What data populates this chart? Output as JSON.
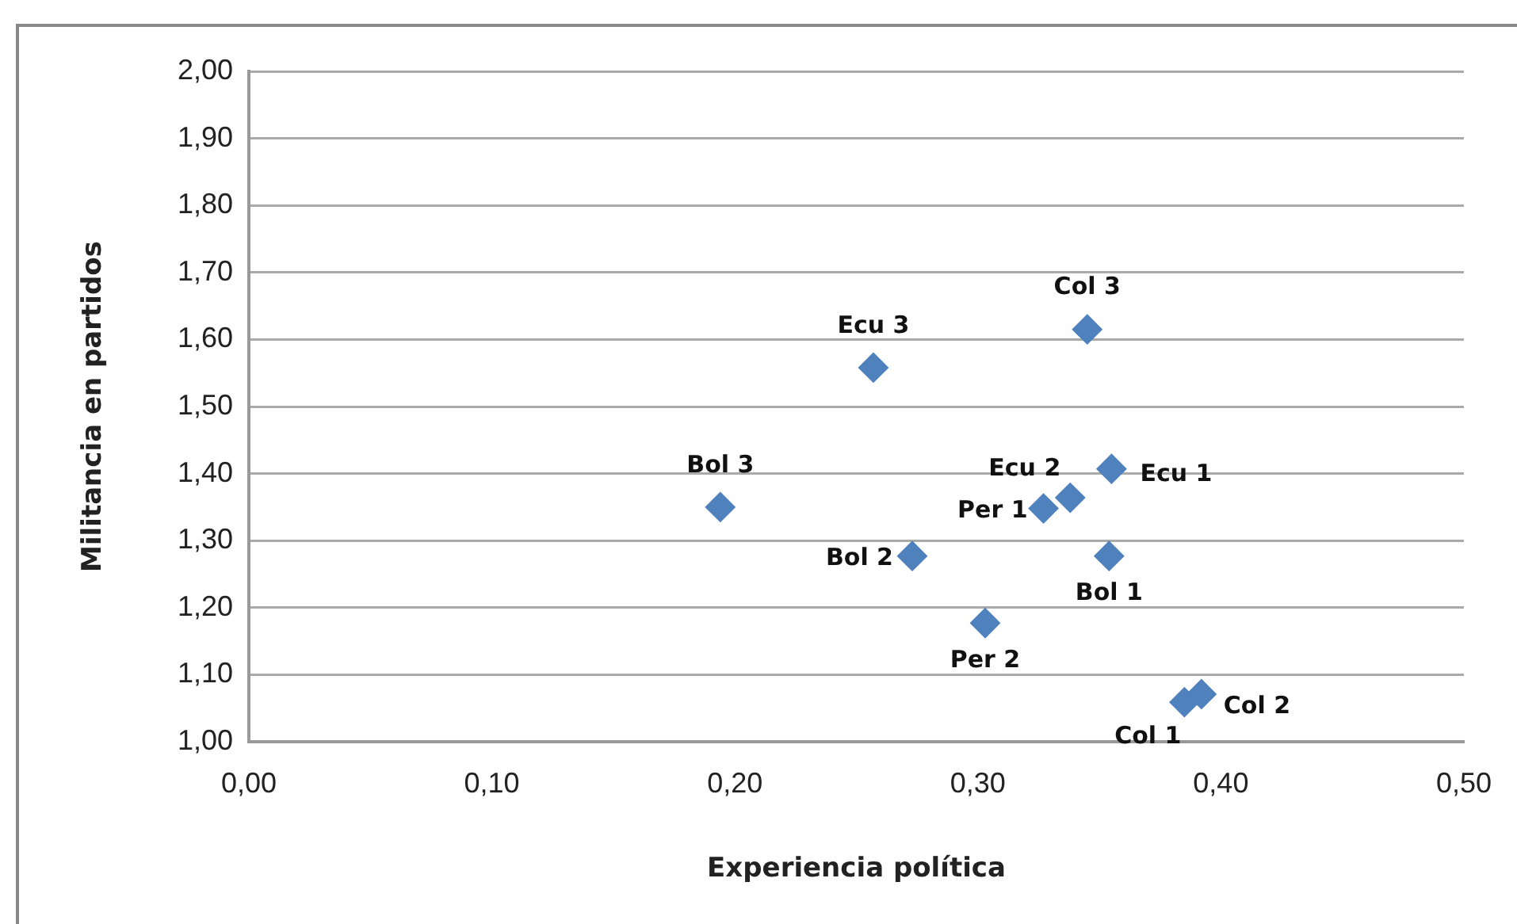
{
  "chart_data": {
    "type": "scatter",
    "xlabel": "Experiencia política",
    "ylabel": "Militancia en partidos",
    "x": [
      0.345,
      0.257,
      0.194,
      0.355,
      0.338,
      0.327,
      0.273,
      0.354,
      0.303,
      0.385,
      0.392
    ],
    "values": [
      1.615,
      1.558,
      1.35,
      1.407,
      1.364,
      1.348,
      1.277,
      1.277,
      1.177,
      1.059,
      1.071
    ],
    "color": "#4f81bd",
    "marker": "diamond",
    "grid": "y",
    "legend": false,
    "xlim": [
      0,
      0.5
    ],
    "xticks": [
      {
        "value": 0,
        "label": "0,00"
      },
      {
        "value": 0.1,
        "label": "0,10"
      },
      {
        "value": 0.2,
        "label": "0,20"
      },
      {
        "value": 0.3,
        "label": "0,30"
      },
      {
        "value": 0.4,
        "label": "0,40"
      },
      {
        "value": 0.5,
        "label": "0,50"
      }
    ],
    "ylim": [
      1,
      2
    ],
    "yticks": [
      {
        "value": 1,
        "label": "1,00"
      },
      {
        "value": 1.1,
        "label": "1,10"
      },
      {
        "value": 1.2,
        "label": "1,20"
      },
      {
        "value": 1.3,
        "label": "1,30"
      },
      {
        "value": 1.4,
        "label": "1,40"
      },
      {
        "value": 1.5,
        "label": "1,50"
      },
      {
        "value": 1.6,
        "label": "1,60"
      },
      {
        "value": 1.7,
        "label": "1,70"
      },
      {
        "value": 1.8,
        "label": "1,80"
      },
      {
        "value": 1.9,
        "label": "1,90"
      },
      {
        "value": 2,
        "label": "2,00"
      }
    ],
    "annotations": [
      {
        "text": "Col 3",
        "x": 0.345,
        "y": 1.615
      },
      {
        "text": "Ecu 3",
        "x": 0.257,
        "y": 1.558
      },
      {
        "text": "Bol 3",
        "x": 0.194,
        "y": 1.35
      },
      {
        "text": "Ecu 1",
        "x": 0.355,
        "y": 1.407
      },
      {
        "text": "Ecu 2",
        "x": 0.338,
        "y": 1.364
      },
      {
        "text": "Per 1",
        "x": 0.327,
        "y": 1.348
      },
      {
        "text": "Bol 2",
        "x": 0.273,
        "y": 1.277
      },
      {
        "text": "Bol 1",
        "x": 0.354,
        "y": 1.277
      },
      {
        "text": "Per 2",
        "x": 0.303,
        "y": 1.177
      },
      {
        "text": "Col 1",
        "x": 0.385,
        "y": 1.059
      },
      {
        "text": "Col 2",
        "x": 0.392,
        "y": 1.071
      }
    ]
  }
}
